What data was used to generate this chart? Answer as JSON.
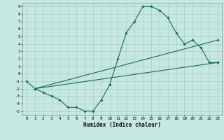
{
  "title": "",
  "xlabel": "Humidex (Indice chaleur)",
  "bg_color": "#c5e8e0",
  "grid_color": "#a8cfc8",
  "line_color": "#1a6b5a",
  "xlim": [
    -0.5,
    23.5
  ],
  "ylim": [
    -5.5,
    9.5
  ],
  "xticks": [
    0,
    1,
    2,
    3,
    4,
    5,
    6,
    7,
    8,
    9,
    10,
    11,
    12,
    13,
    14,
    15,
    16,
    17,
    18,
    19,
    20,
    21,
    22,
    23
  ],
  "yticks": [
    -5,
    -4,
    -3,
    -2,
    -1,
    0,
    1,
    2,
    3,
    4,
    5,
    6,
    7,
    8,
    9
  ],
  "line1_x": [
    0,
    1,
    2,
    3,
    4,
    5,
    6,
    7,
    8,
    9,
    10,
    11,
    12,
    13,
    14,
    15,
    16,
    17,
    18,
    19,
    20,
    21,
    22,
    23
  ],
  "line1_y": [
    -1,
    -2,
    -2.5,
    -3,
    -3.5,
    -4.5,
    -4.5,
    -5,
    -5,
    -3.5,
    -1.5,
    2,
    5.5,
    7,
    9,
    9,
    8.5,
    7.5,
    5.5,
    4,
    4.5,
    3.5,
    1.5,
    1.5
  ],
  "line2_x": [
    1,
    23
  ],
  "line2_y": [
    -2,
    1.5
  ],
  "line3_x": [
    1,
    23
  ],
  "line3_y": [
    -2,
    4.5
  ],
  "xlabel_fontsize": 5.5,
  "tick_fontsize": 4.2,
  "linewidth": 0.8,
  "markersize": 1.8
}
